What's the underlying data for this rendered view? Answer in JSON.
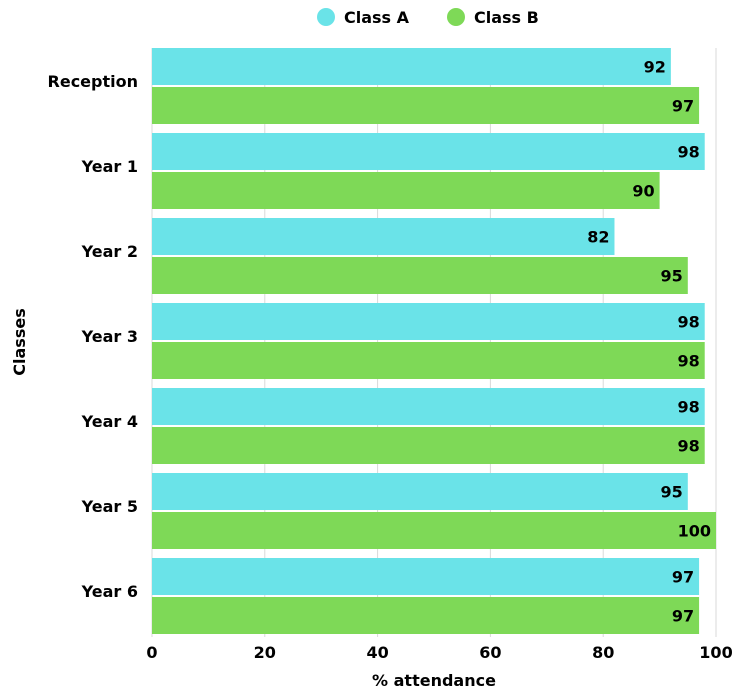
{
  "chart_data": {
    "type": "bar",
    "orientation": "horizontal",
    "categories": [
      "Reception",
      "Year 1",
      "Year 2",
      "Year 3",
      "Year 4",
      "Year 5",
      "Year 6"
    ],
    "series": [
      {
        "name": "Class A",
        "color": "#6ae3e8",
        "values": [
          92,
          98,
          82,
          98,
          98,
          95,
          97
        ]
      },
      {
        "name": "Class B",
        "color": "#7ed957",
        "values": [
          97,
          90,
          95,
          98,
          98,
          100,
          97
        ]
      }
    ],
    "xlabel": "% attendance",
    "ylabel": "Classes",
    "xlim": [
      0,
      100
    ],
    "xticks": [
      "0",
      "20",
      "40",
      "60",
      "80",
      "100"
    ],
    "grid": true,
    "legend_position": "top-center",
    "data_labels": true
  }
}
